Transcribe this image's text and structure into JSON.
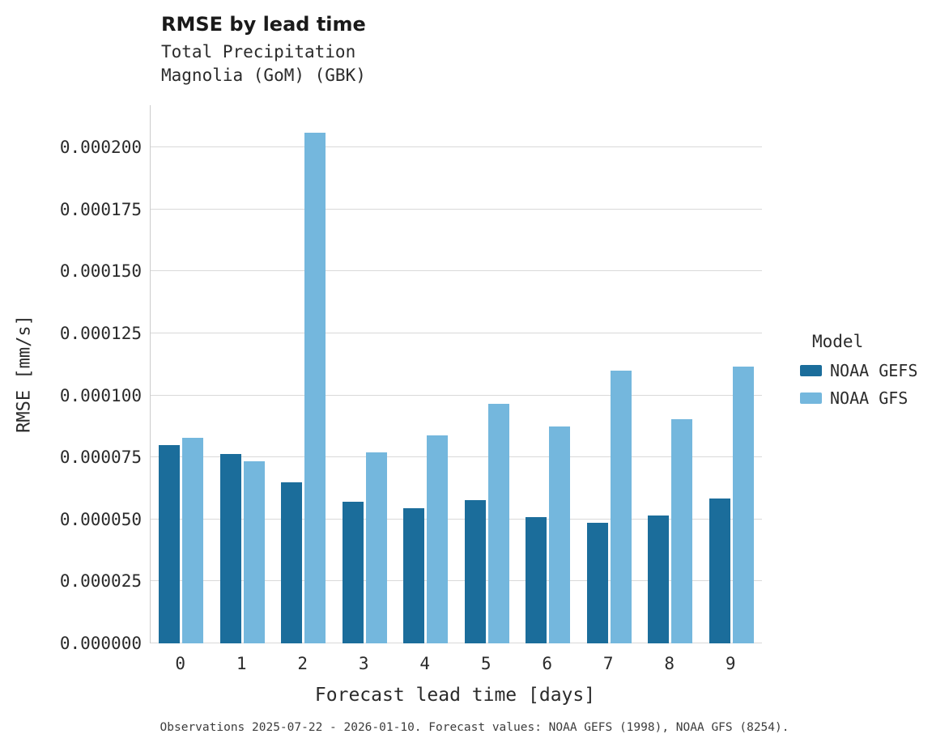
{
  "title": "RMSE by lead time",
  "subtitle": [
    "Total Precipitation",
    "Magnolia (GoM) (GBK)"
  ],
  "caption": "Observations 2025-07-22 - 2026-01-10. Forecast values: NOAA GEFS (1998), NOAA GFS (8254).",
  "legend": {
    "title": "Model",
    "entries": [
      {
        "label": "NOAA GEFS",
        "color": "#1b6d9b"
      },
      {
        "label": "NOAA GFS",
        "color": "#74b7dd"
      }
    ]
  },
  "colors": {
    "gefs": "#1b6d9b",
    "gfs": "#74b7dd",
    "grid": "#d9d9d9",
    "axis": "#cccccc"
  },
  "chart_data": {
    "type": "bar",
    "title": "RMSE by lead time",
    "subtitle": "Total Precipitation — Magnolia (GoM) (GBK)",
    "xlabel": "Forecast lead time [days]",
    "ylabel": "RMSE [mm/s]",
    "categories": [
      "0",
      "1",
      "2",
      "3",
      "4",
      "5",
      "6",
      "7",
      "8",
      "9"
    ],
    "series": [
      {
        "name": "NOAA GEFS",
        "color": "#1b6d9b",
        "values": [
          8e-05,
          7.65e-05,
          6.5e-05,
          5.7e-05,
          5.45e-05,
          5.78e-05,
          5.1e-05,
          4.85e-05,
          5.15e-05,
          5.85e-05
        ]
      },
      {
        "name": "NOAA GFS",
        "color": "#74b7dd",
        "values": [
          8.3e-05,
          7.35e-05,
          0.000206,
          7.7e-05,
          8.38e-05,
          9.65e-05,
          8.75e-05,
          0.00011,
          9.05e-05,
          0.0001115
        ]
      }
    ],
    "yticks": [
      0,
      2.5e-05,
      5e-05,
      7.5e-05,
      0.0001,
      0.000125,
      0.00015,
      0.000175,
      0.0002
    ],
    "ytick_labels": [
      "0.000000",
      "0.000025",
      "0.000050",
      "0.000075",
      "0.000100",
      "0.000125",
      "0.000150",
      "0.000175",
      "0.000200"
    ],
    "ylim": [
      0,
      0.000217
    ],
    "grid": "horizontal",
    "legend_position": "right"
  }
}
